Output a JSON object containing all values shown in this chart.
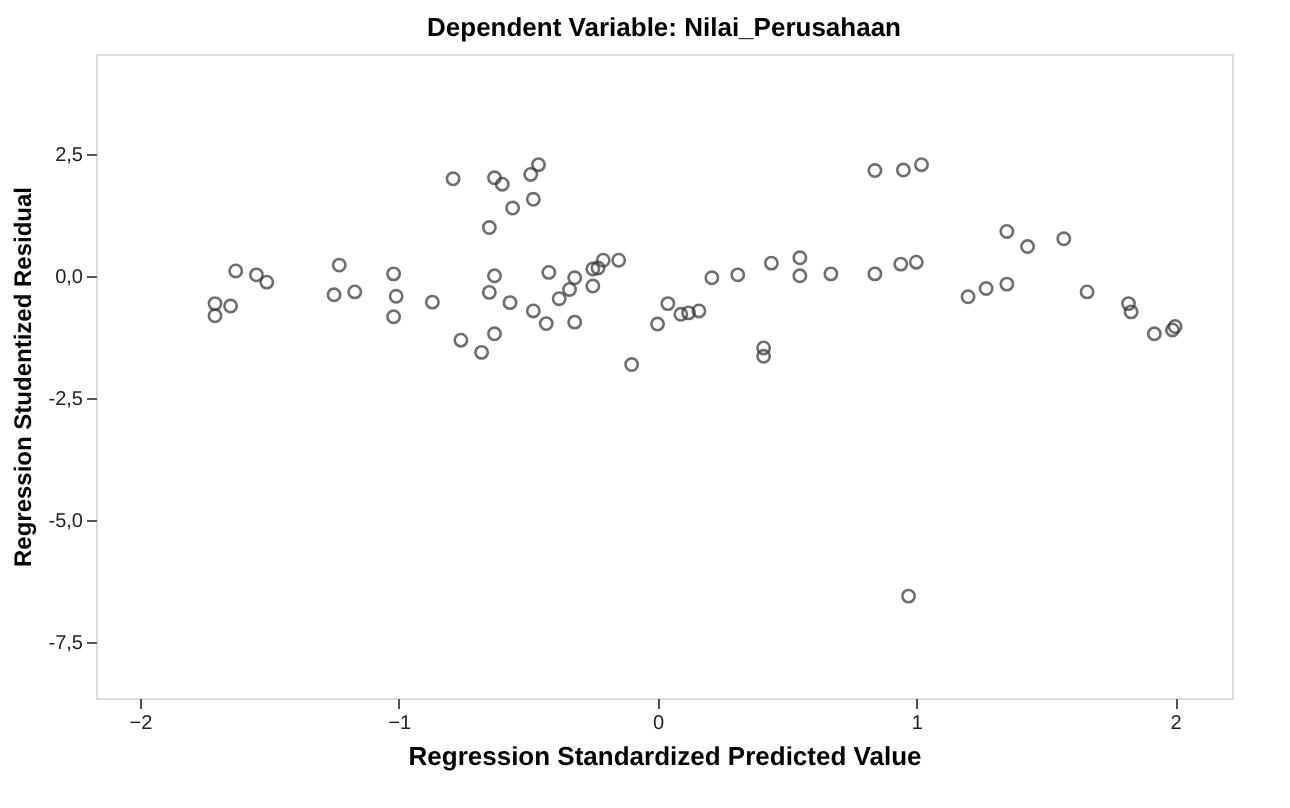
{
  "chart_data": {
    "type": "scatter",
    "title": "Dependent Variable: Nilai_Perusahaan",
    "xlabel": "Regression Standardized Predicted Value",
    "ylabel": "Regression Studentized Residual",
    "x": [
      -1.71,
      -1.71,
      -1.65,
      -1.63,
      -1.55,
      -1.51,
      -1.25,
      -1.23,
      -1.17,
      -1.02,
      -1.01,
      -1.02,
      -0.87,
      -0.79,
      -0.76,
      -0.68,
      -0.65,
      -0.63,
      -0.6,
      -0.65,
      -0.63,
      -0.63,
      -0.57,
      -0.56,
      -0.49,
      -0.46,
      -0.48,
      -0.48,
      -0.43,
      -0.42,
      -0.38,
      -0.34,
      -0.32,
      -0.32,
      -0.25,
      -0.25,
      -0.23,
      -0.21,
      -0.15,
      -0.1,
      0.0,
      0.04,
      0.09,
      0.12,
      0.16,
      0.21,
      0.31,
      0.41,
      0.41,
      0.44,
      0.55,
      0.55,
      0.67,
      0.84,
      0.84,
      0.95,
      1.02,
      0.94,
      1.0,
      1.2,
      1.27,
      1.35,
      1.35,
      1.43,
      1.57,
      1.66,
      1.82,
      1.83,
      1.92,
      1.99,
      2.0,
      0.97
    ],
    "series": [
      {
        "color": "#333333",
        "values": [
          -0.56,
          -0.81,
          -0.61,
          0.11,
          0.03,
          -0.12,
          -0.38,
          0.23,
          -0.32,
          0.05,
          -0.41,
          -0.83,
          -0.53,
          2.0,
          -1.31,
          -1.56,
          1.0,
          2.02,
          1.89,
          -0.33,
          0.01,
          -1.18,
          -0.54,
          1.4,
          2.09,
          2.29,
          1.58,
          -0.71,
          -0.97,
          0.08,
          -0.46,
          -0.27,
          -0.03,
          -0.94,
          -0.2,
          0.15,
          0.17,
          0.33,
          0.33,
          -1.81,
          -0.98,
          -0.56,
          -0.78,
          -0.75,
          -0.71,
          -0.03,
          0.03,
          -1.47,
          -1.64,
          0.27,
          0.38,
          0.01,
          0.05,
          0.05,
          2.17,
          2.18,
          2.29,
          0.25,
          0.29,
          -0.42,
          -0.25,
          -0.16,
          0.92,
          0.61,
          0.77,
          -0.32,
          -0.56,
          -0.73,
          -1.18,
          -1.1,
          -1.03,
          -6.56
        ]
      }
    ],
    "xlim": [
      -2.17,
      2.22
    ],
    "xticks": [
      -2,
      -1,
      0,
      1,
      2
    ],
    "ylim": [
      -8.65,
      4.56
    ],
    "yticks": [
      {
        "value": 2.5,
        "label": "2,5"
      },
      {
        "value": 0,
        "label": "0,0"
      },
      {
        "value": -2.5,
        "label": "-2,5"
      },
      {
        "value": -5,
        "label": "-5,0"
      },
      {
        "value": -7.5,
        "label": "-7,5"
      }
    ],
    "marker": "circle",
    "grid": false
  }
}
